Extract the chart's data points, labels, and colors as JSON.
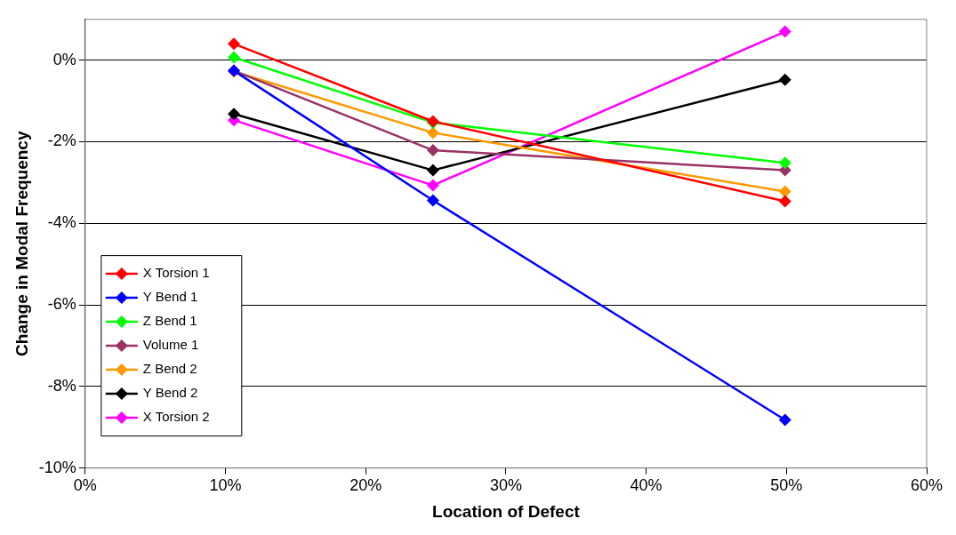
{
  "chart_data": {
    "type": "line",
    "xlabel": "Location of Defect",
    "ylabel": "Change in Modal Frequency",
    "x": [
      10.6,
      24.8,
      49.9
    ],
    "series": [
      {
        "name": "X Torsion 1",
        "color": "#ff0000",
        "values": [
          0.4,
          -1.5,
          -3.46
        ]
      },
      {
        "name": "Y Bend 1",
        "color": "#0000ff",
        "values": [
          -0.26,
          -3.44,
          -8.82
        ]
      },
      {
        "name": "Z Bend 1",
        "color": "#00ff00",
        "values": [
          0.07,
          -1.53,
          -2.52
        ]
      },
      {
        "name": "Volume 1",
        "color": "#993366",
        "values": [
          -0.26,
          -2.21,
          -2.7
        ]
      },
      {
        "name": "Z Bend 2",
        "color": "#ff9900",
        "values": [
          -0.28,
          -1.78,
          -3.22
        ]
      },
      {
        "name": "Y Bend 2",
        "color": "#000000",
        "values": [
          -1.32,
          -2.7,
          -0.48
        ]
      },
      {
        "name": "X Torsion 2",
        "color": "#ff00ff",
        "values": [
          -1.47,
          -3.07,
          0.7
        ]
      }
    ],
    "xlim": [
      0,
      60
    ],
    "xticks": [
      {
        "value": 0,
        "label": "0%"
      },
      {
        "value": 10,
        "label": "10%"
      },
      {
        "value": 20,
        "label": "20%"
      },
      {
        "value": 30,
        "label": "30%"
      },
      {
        "value": 40,
        "label": "40%"
      },
      {
        "value": 50,
        "label": "50%"
      },
      {
        "value": 60,
        "label": "60%"
      }
    ],
    "ylim": [
      -10,
      1
    ],
    "yticks": [
      {
        "value": -10,
        "label": "-10%"
      },
      {
        "value": -8,
        "label": "-8%"
      },
      {
        "value": -6,
        "label": "-6%"
      },
      {
        "value": -4,
        "label": "-4%"
      },
      {
        "value": -2,
        "label": "-2%"
      },
      {
        "value": 0,
        "label": "0%"
      }
    ],
    "grid": "y",
    "legend": "bottom left",
    "marker": "diamond",
    "line_style": "solid"
  }
}
